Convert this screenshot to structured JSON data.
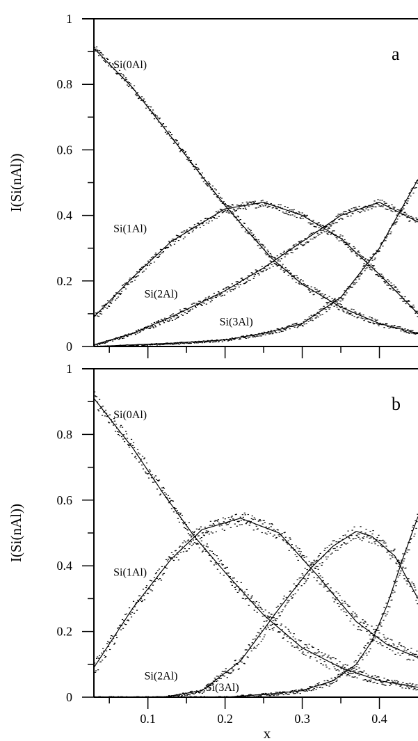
{
  "chart_data": {
    "type": "line",
    "xlabel": "x",
    "ylabel": "I(Si(nAl))",
    "xlim": [
      0.03,
      0.45
    ],
    "ylim": [
      0,
      1
    ],
    "x_ticks": [
      "0.1",
      "0.2",
      "0.3",
      "0.4"
    ],
    "y_ticks": [
      "0",
      "0.2",
      "0.4",
      "0.6",
      "0.8",
      "1"
    ],
    "grid": false,
    "legend": "none",
    "panels": [
      {
        "label": "a",
        "series": [
          {
            "name": "Si(0Al)",
            "points": [
              [
                0.03,
                0.91
              ],
              [
                0.08,
                0.79
              ],
              [
                0.13,
                0.64
              ],
              [
                0.2,
                0.43
              ],
              [
                0.26,
                0.27
              ],
              [
                0.3,
                0.19
              ],
              [
                0.35,
                0.12
              ],
              [
                0.4,
                0.07
              ],
              [
                0.45,
                0.04
              ]
            ]
          },
          {
            "name": "Si(1Al)",
            "points": [
              [
                0.03,
                0.09
              ],
              [
                0.08,
                0.21
              ],
              [
                0.13,
                0.32
              ],
              [
                0.2,
                0.42
              ],
              [
                0.25,
                0.44
              ],
              [
                0.3,
                0.4
              ],
              [
                0.35,
                0.33
              ],
              [
                0.4,
                0.22
              ],
              [
                0.45,
                0.1
              ]
            ]
          },
          {
            "name": "Si(2Al)",
            "points": [
              [
                0.03,
                0.005
              ],
              [
                0.08,
                0.04
              ],
              [
                0.13,
                0.09
              ],
              [
                0.2,
                0.17
              ],
              [
                0.25,
                0.24
              ],
              [
                0.3,
                0.32
              ],
              [
                0.35,
                0.4
              ],
              [
                0.4,
                0.44
              ],
              [
                0.45,
                0.38
              ]
            ]
          },
          {
            "name": "Si(3Al)",
            "points": [
              [
                0.03,
                0.0
              ],
              [
                0.08,
                0.005
              ],
              [
                0.13,
                0.01
              ],
              [
                0.2,
                0.02
              ],
              [
                0.25,
                0.04
              ],
              [
                0.3,
                0.07
              ],
              [
                0.35,
                0.15
              ],
              [
                0.4,
                0.3
              ],
              [
                0.45,
                0.51
              ]
            ]
          }
        ]
      },
      {
        "label": "b",
        "series": [
          {
            "name": "Si(0Al)",
            "points": [
              [
                0.03,
                0.91
              ],
              [
                0.08,
                0.76
              ],
              [
                0.12,
                0.62
              ],
              [
                0.16,
                0.49
              ],
              [
                0.2,
                0.38
              ],
              [
                0.25,
                0.25
              ],
              [
                0.3,
                0.15
              ],
              [
                0.35,
                0.09
              ],
              [
                0.4,
                0.05
              ],
              [
                0.45,
                0.03
              ]
            ]
          },
          {
            "name": "Si(1Al)",
            "points": [
              [
                0.03,
                0.09
              ],
              [
                0.08,
                0.27
              ],
              [
                0.13,
                0.42
              ],
              [
                0.17,
                0.51
              ],
              [
                0.22,
                0.545
              ],
              [
                0.27,
                0.5
              ],
              [
                0.32,
                0.37
              ],
              [
                0.37,
                0.23
              ],
              [
                0.41,
                0.16
              ],
              [
                0.45,
                0.12
              ]
            ]
          },
          {
            "name": "Si(2Al)",
            "points": [
              [
                0.03,
                0.0
              ],
              [
                0.12,
                0.0
              ],
              [
                0.17,
                0.02
              ],
              [
                0.22,
                0.11
              ],
              [
                0.27,
                0.27
              ],
              [
                0.31,
                0.39
              ],
              [
                0.34,
                0.46
              ],
              [
                0.37,
                0.505
              ],
              [
                0.39,
                0.49
              ],
              [
                0.42,
                0.43
              ],
              [
                0.45,
                0.3
              ]
            ]
          },
          {
            "name": "Si(3Al)",
            "points": [
              [
                0.03,
                0.0
              ],
              [
                0.2,
                0.0
              ],
              [
                0.26,
                0.01
              ],
              [
                0.3,
                0.02
              ],
              [
                0.34,
                0.05
              ],
              [
                0.37,
                0.1
              ],
              [
                0.39,
                0.17
              ],
              [
                0.41,
                0.28
              ],
              [
                0.43,
                0.42
              ],
              [
                0.45,
                0.55
              ]
            ]
          }
        ]
      }
    ]
  }
}
